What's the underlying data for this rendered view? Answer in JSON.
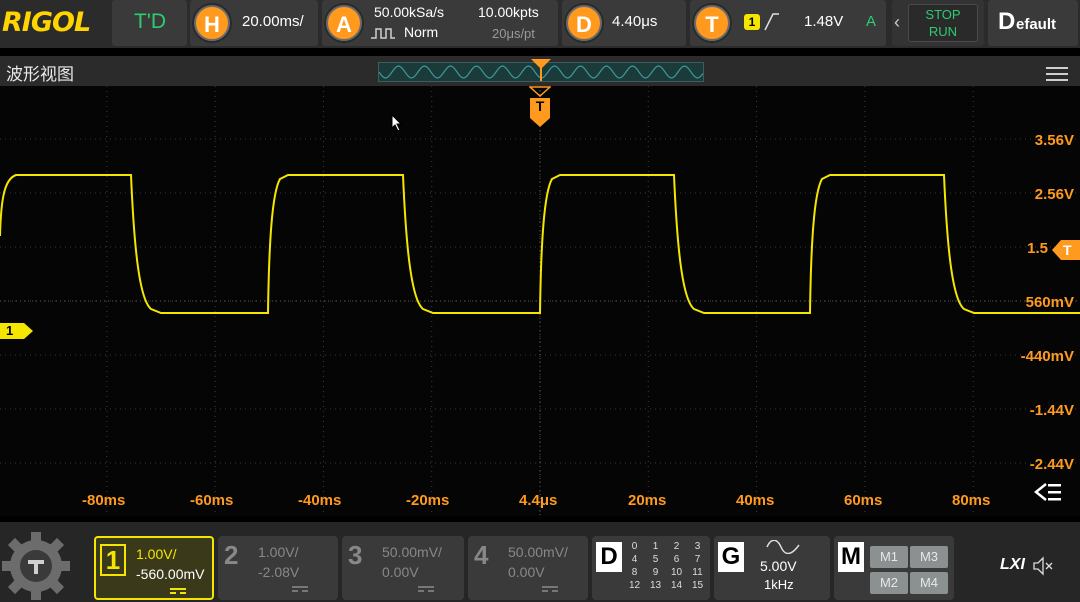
{
  "brand": "RIGOL",
  "topbar": {
    "td_label": "T'D",
    "horizontal": {
      "key": "H",
      "timebase": "20.00ms/"
    },
    "acquire": {
      "key": "A",
      "sample_rate": "50.00kSa/s",
      "mode": "Norm",
      "memory_depth": "10.00kpts",
      "time_per_pt": "20μs/pt"
    },
    "delay": {
      "key": "D",
      "value": "4.40μs"
    },
    "trigger": {
      "key": "T",
      "source": "1",
      "level": "1.48V",
      "mode_indicator": "A"
    },
    "stop_label": "STOP",
    "run_label": "RUN",
    "default_label": "Default",
    "default_initial": "D",
    "default_rest": "efault"
  },
  "window_title": "波形视图",
  "trigger_marker": "T",
  "channel_marker": "1",
  "trigger_level_marker": "T",
  "vertical_labels": [
    "3.56V",
    "2.56V",
    "1.5",
    "560mV",
    "-440mV",
    "-1.44V",
    "-2.44V"
  ],
  "time_labels": [
    "-80ms",
    "-60ms",
    "-40ms",
    "-20ms",
    "4.4μs",
    "20ms",
    "40ms",
    "60ms",
    "80ms"
  ],
  "channels": [
    {
      "num": "1",
      "scale": "1.00V/",
      "offset": "-560.00mV",
      "active": true
    },
    {
      "num": "2",
      "scale": "1.00V/",
      "offset": "-2.08V",
      "active": false
    },
    {
      "num": "3",
      "scale": "50.00mV/",
      "offset": "0.00V",
      "active": false
    },
    {
      "num": "4",
      "scale": "50.00mV/",
      "offset": "0.00V",
      "active": false
    }
  ],
  "digital": {
    "key": "D",
    "rows": [
      [
        "0",
        "1",
        "2",
        "3"
      ],
      [
        "4",
        "5",
        "6",
        "7"
      ],
      [
        "8",
        "9",
        "10",
        "11"
      ],
      [
        "12",
        "13",
        "14",
        "15"
      ]
    ]
  },
  "generator": {
    "key": "G",
    "amplitude": "5.00V",
    "frequency": "1kHz"
  },
  "math": {
    "key": "M",
    "items": [
      "M1",
      "M3",
      "M2",
      "M4"
    ]
  },
  "lxi": "LXI",
  "colors": {
    "accent": "#ff9a1f",
    "ch1": "#f5e600",
    "td_green": "#2ecc71",
    "stop_run": "#2ecc71"
  }
}
